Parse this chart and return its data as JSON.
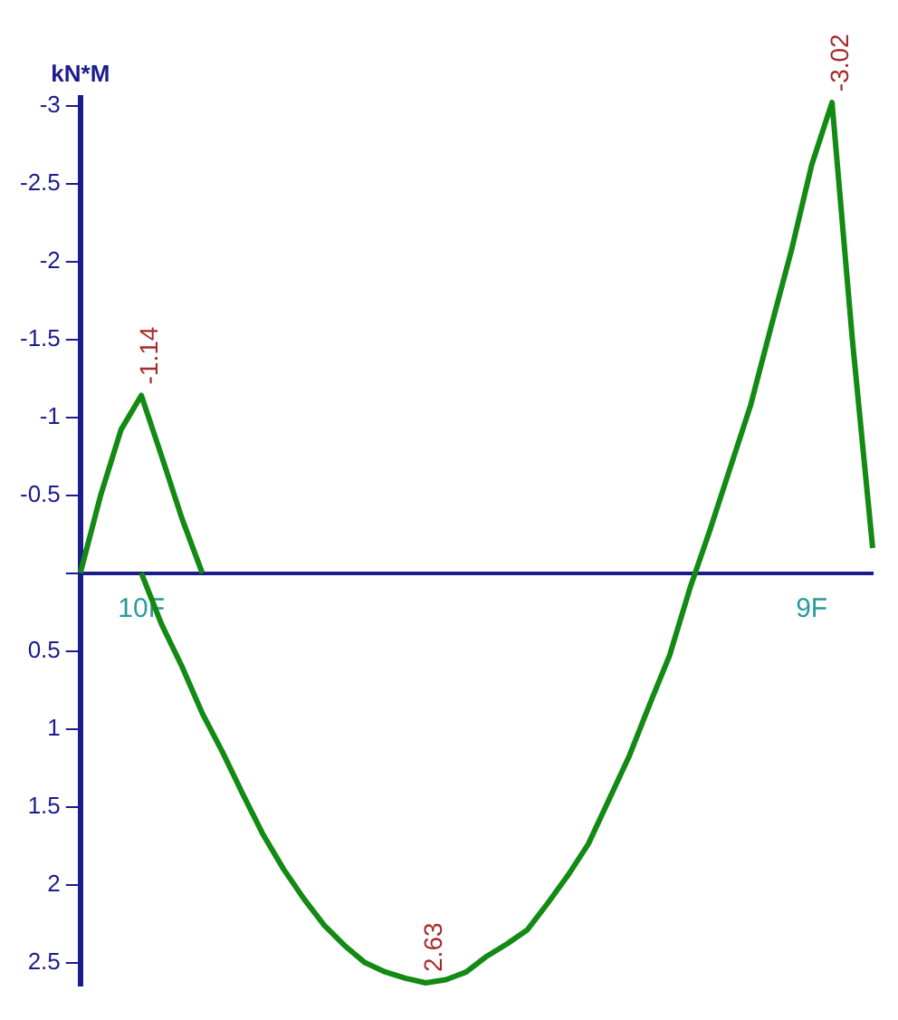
{
  "chart_data": {
    "type": "line",
    "ylabel": "kN*M",
    "ylim": [
      2.65,
      -3.05
    ],
    "categories": [
      null,
      null,
      null,
      "10F",
      null,
      null,
      null,
      null,
      null,
      null,
      null,
      null,
      null,
      null,
      null,
      null,
      null,
      null,
      null,
      null,
      null,
      null,
      null,
      null,
      null,
      null,
      null,
      null,
      null,
      null,
      null,
      null,
      null,
      null,
      null,
      null,
      "9F",
      null,
      null,
      null
    ],
    "yticks": [
      -3,
      -2.5,
      -2,
      -1.5,
      -1,
      -0.5,
      {
        "value": 0,
        "label": null
      },
      0.5,
      1,
      1.5,
      2,
      2.5
    ],
    "grid": false,
    "legend": false,
    "marker": "none",
    "line_style": "solid",
    "series": [
      {
        "color": "#138a13",
        "values": [
          0,
          -0.5,
          -0.92,
          -1.14,
          -0.75,
          -0.35,
          0,
          null,
          null,
          null,
          null,
          null,
          null,
          null,
          null,
          null,
          null,
          null,
          null,
          null,
          null,
          null,
          null,
          null,
          null,
          null,
          null,
          null,
          null,
          null,
          null,
          null,
          null,
          null,
          null,
          null,
          null,
          null,
          null,
          null
        ]
      },
      {
        "color": "#138a13",
        "values": [
          null,
          null,
          null,
          0,
          0.33,
          0.6,
          0.9,
          1.15,
          1.42,
          1.68,
          1.9,
          2.09,
          2.26,
          2.39,
          2.5,
          2.56,
          2.6,
          2.63,
          2.61,
          2.56,
          2.46,
          2.38,
          2.29,
          2.12,
          1.94,
          1.74,
          1.46,
          1.18,
          0.85,
          0.53,
          0.1,
          -0.28,
          -0.68,
          -1.08,
          -1.58,
          -2.07,
          -2.62,
          -3.02,
          -1.5,
          -0.16
        ]
      }
    ],
    "annotations": [
      {
        "text": "-1.14",
        "y": -1.14
      },
      {
        "text": "2.63",
        "y": 2.63
      },
      {
        "text": "-3.02",
        "y": -3.02
      }
    ]
  }
}
